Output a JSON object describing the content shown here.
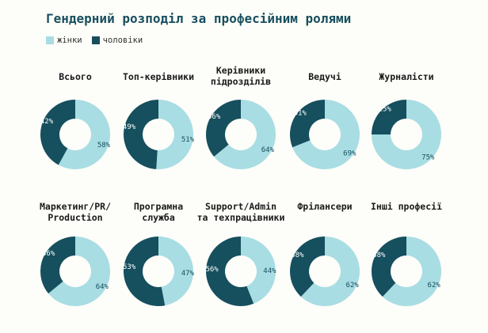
{
  "title": "Гендерний розподіл за професійним ролями",
  "legend": [
    {
      "label": "жінки",
      "color": "#a8dde3"
    },
    {
      "label": "чоловіки",
      "color": "#164f5e"
    }
  ],
  "chart_data": {
    "type": "pie",
    "title": "Гендерний розподіл за професійним ролями",
    "series_names": [
      "жінки",
      "чоловіки"
    ],
    "categories": [
      "Всього",
      "Топ-керівники",
      "Керівники\nпідрозділів",
      "Ведучі",
      "Журналісти",
      "Маркетинг/PR/\nProduction",
      "Програмна\nслужба",
      "Support/Admin\nта техпрацівники",
      "Фрілансери",
      "Інші професії"
    ],
    "women": [
      58,
      51,
      64,
      69,
      75,
      64,
      47,
      44,
      62,
      62
    ],
    "men": [
      42,
      49,
      36,
      31,
      25,
      36,
      53,
      56,
      38,
      38
    ],
    "women_labels": [
      "58%",
      "51%",
      "64%",
      "69%",
      "75%",
      "64%",
      "47%",
      "44%",
      "62%",
      "62%"
    ],
    "men_labels": [
      "42%",
      "49%",
      "36%",
      "31%",
      "25%",
      "36%",
      "53%",
      "56%",
      "38%",
      "38%"
    ]
  }
}
